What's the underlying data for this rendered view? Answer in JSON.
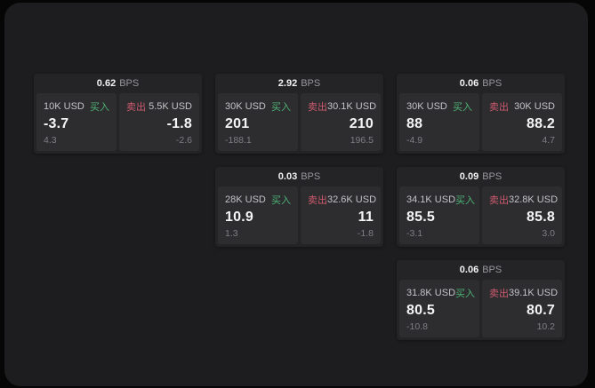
{
  "labels": {
    "buy": "买入",
    "sell": "卖出",
    "spread_unit": "BPS"
  },
  "colors": {
    "buy_green": "#4db375",
    "sell_red": "#ce5a6c",
    "panel_background": "#1d1d1f",
    "card_background": "#242427",
    "tile_background": "#2d2d30"
  },
  "cards": [
    {
      "col": 1,
      "row": 1,
      "spread": "0.62",
      "buy": {
        "size": "10K USD",
        "price": "-3.7",
        "delta": "4.3"
      },
      "sell": {
        "size": "5.5K USD",
        "price": "-1.8",
        "delta": "-2.6"
      }
    },
    {
      "col": 2,
      "row": 1,
      "spread": "2.92",
      "buy": {
        "size": "30K USD",
        "price": "201",
        "delta": "-188.1"
      },
      "sell": {
        "size": "30.1K USD",
        "price": "210",
        "delta": "196.5"
      }
    },
    {
      "col": 3,
      "row": 1,
      "spread": "0.06",
      "buy": {
        "size": "30K USD",
        "price": "88",
        "delta": "-4.9"
      },
      "sell": {
        "size": "30K USD",
        "price": "88.2",
        "delta": "4.7"
      }
    },
    {
      "col": 2,
      "row": 2,
      "spread": "0.03",
      "buy": {
        "size": "28K USD",
        "price": "10.9",
        "delta": "1.3"
      },
      "sell": {
        "size": "32.6K USD",
        "price": "11",
        "delta": "-1.8"
      }
    },
    {
      "col": 3,
      "row": 2,
      "spread": "0.09",
      "buy": {
        "size": "34.1K USD",
        "price": "85.5",
        "delta": "-3.1"
      },
      "sell": {
        "size": "32.8K USD",
        "price": "85.8",
        "delta": "3.0"
      }
    },
    {
      "col": 3,
      "row": 3,
      "spread": "0.06",
      "buy": {
        "size": "31.8K USD",
        "price": "80.5",
        "delta": "-10.8"
      },
      "sell": {
        "size": "39.1K USD",
        "price": "80.7",
        "delta": "10.2"
      }
    }
  ]
}
